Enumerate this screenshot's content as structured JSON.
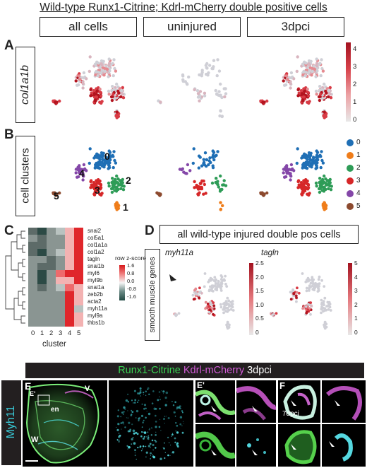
{
  "figure": {
    "title": "Wild-type Runx1-Citrine; Kdrl-mCherry double positive cells",
    "columns": [
      "all cells",
      "uninjured",
      "3dpci"
    ],
    "panel_a": {
      "letter": "A",
      "row_label": "col1a1b",
      "colorbar_ticks": [
        "4",
        "3",
        "2",
        "1",
        "0"
      ]
    },
    "panel_b": {
      "letter": "B",
      "row_label": "cell clusters",
      "cluster_labels": [
        "0",
        "1",
        "2",
        "3",
        "4",
        "5"
      ],
      "legend": [
        {
          "label": "0",
          "color": "#1f6fb5"
        },
        {
          "label": "1",
          "color": "#ef7d1a"
        },
        {
          "label": "2",
          "color": "#2e9c57"
        },
        {
          "label": "3",
          "color": "#d62728"
        },
        {
          "label": "4",
          "color": "#8447a8"
        },
        {
          "label": "5",
          "color": "#8c4a2f"
        }
      ]
    },
    "panel_c": {
      "letter": "C",
      "genes": [
        "snai2",
        "col5a1",
        "col1a1a",
        "col1a2",
        "tagln",
        "snai1b",
        "myl6",
        "myl9b",
        "snai1a",
        "zeb2b",
        "acta2",
        "myh11a",
        "myl9a",
        "thbs1b"
      ],
      "clusters": [
        "0",
        "1",
        "2",
        "3",
        "4",
        "5"
      ],
      "xlabel": "cluster",
      "legend_title": "row z-score",
      "legend_ticks": [
        "1.6",
        "0.8",
        "0.0",
        "-0.8",
        "-1.6"
      ]
    },
    "panel_d": {
      "letter": "D",
      "title": "all wild-type injured double pos cells",
      "row_label": "smooth muscle genes",
      "plots": [
        {
          "gene": "myh11a",
          "ticks": [
            "2.5",
            "2.0",
            "1.5",
            "1.0",
            "0.5",
            "0"
          ]
        },
        {
          "gene": "tagln",
          "ticks": [
            "5",
            "4",
            "3",
            "2",
            "1",
            "0"
          ]
        }
      ]
    },
    "panel_e": {
      "header_parts": [
        {
          "text": "Runx1-Citrine",
          "color": "#39d353"
        },
        {
          "text": " Kdrl-mCherry",
          "color": "#d05ad6"
        },
        {
          "text": " 3dpci",
          "color": "#ffffff"
        }
      ],
      "side_label": "Myh11",
      "letter_e": "E",
      "letter_e_prime": "E'",
      "letter_f": "F",
      "annotations": [
        "V",
        "E'",
        "en",
        "W"
      ],
      "f_label": "7dpci"
    }
  }
}
